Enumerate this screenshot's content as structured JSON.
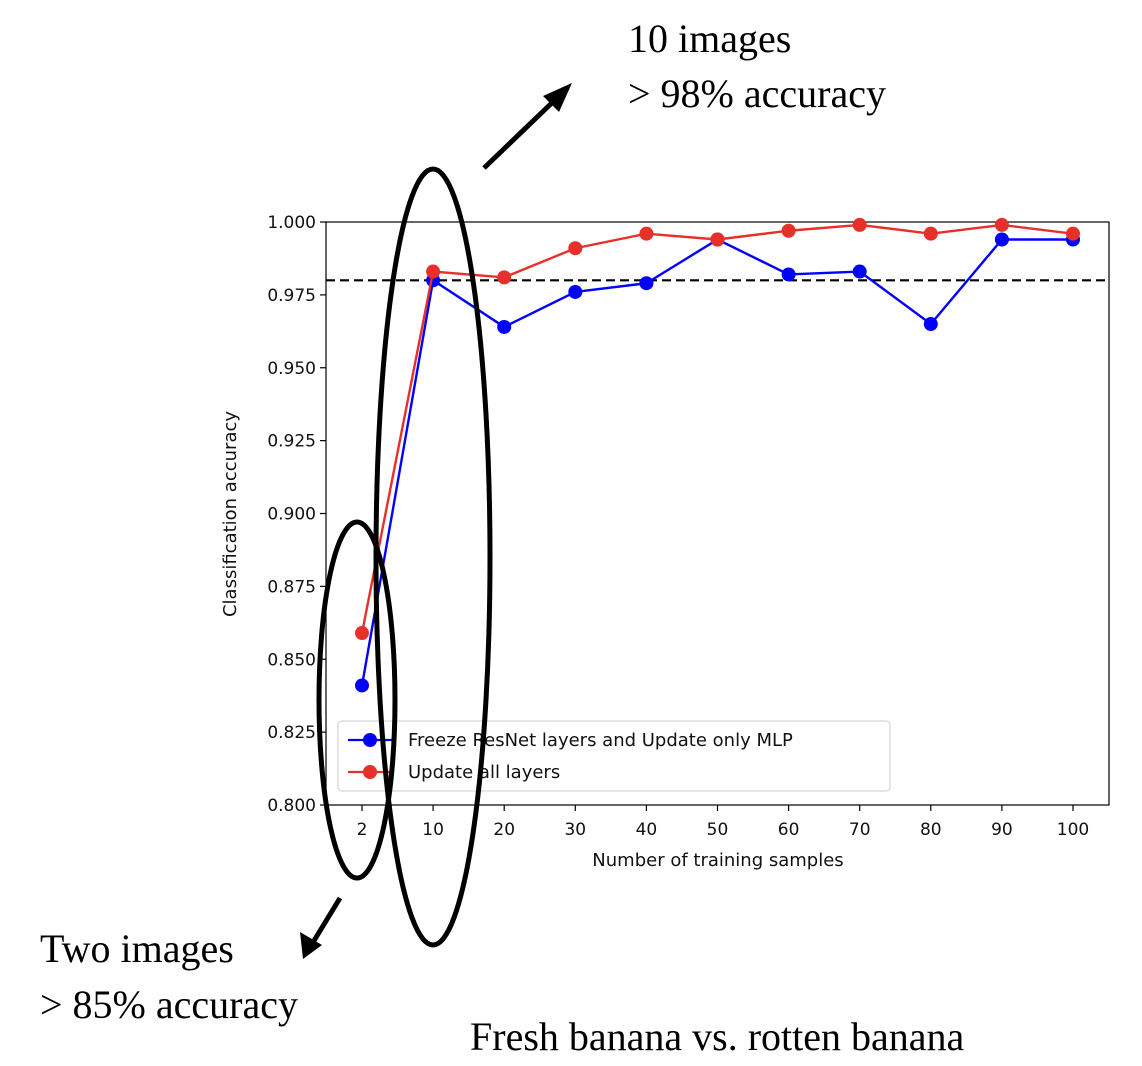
{
  "chart_data": {
    "type": "line",
    "title": "",
    "xlabel": "Number of training samples",
    "ylabel": "Classification accuracy",
    "categories": [
      "2",
      "10",
      "20",
      "30",
      "40",
      "50",
      "60",
      "70",
      "80",
      "90",
      "100"
    ],
    "ylim": [
      0.8,
      1.0
    ],
    "yticks": [
      "0.800",
      "0.825",
      "0.850",
      "0.875",
      "0.900",
      "0.925",
      "0.950",
      "0.975",
      "1.000"
    ],
    "series": [
      {
        "name": "Freeze ResNet layers and Update only MLP",
        "color": "#0000ff",
        "values": [
          0.841,
          0.98,
          0.964,
          0.976,
          0.979,
          0.994,
          0.982,
          0.983,
          0.965,
          0.994,
          0.994
        ]
      },
      {
        "name": "Update all layers",
        "color": "#e8302a",
        "values": [
          0.859,
          0.983,
          0.981,
          0.991,
          0.996,
          0.994,
          0.997,
          0.999,
          0.996,
          0.999,
          0.996
        ]
      }
    ],
    "reference_line": {
      "y": 0.98,
      "style": "dashed",
      "color": "#000000"
    },
    "grid": false,
    "legend_position": "lower-left"
  },
  "annotations": {
    "top_line1": "10 images",
    "top_line2": "> 98% accuracy",
    "bottom_line1": "Two images",
    "bottom_line2": "> 85% accuracy",
    "caption": "Fresh banana vs. rotten banana"
  }
}
